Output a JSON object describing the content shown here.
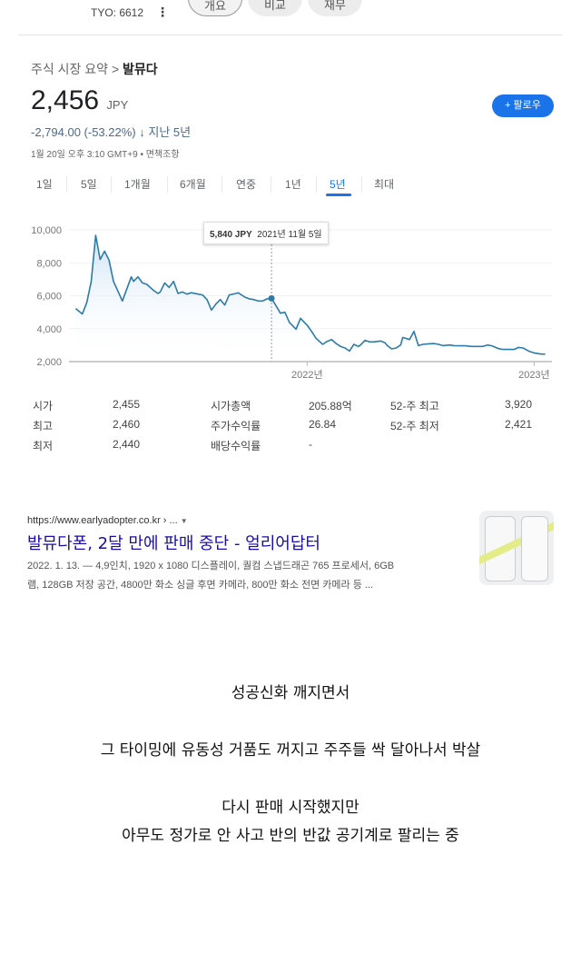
{
  "header": {
    "ticker": "TYO: 6612",
    "tabs": [
      "개요",
      "비교",
      "재무"
    ]
  },
  "summary": {
    "breadcrumb_root": "주식 시장 요약 >",
    "breadcrumb_current": "발뮤다",
    "price": "2,456",
    "currency": "JPY",
    "change": "-2,794.00 (-53.22%)",
    "change_arrow": "↓",
    "change_period": "지난 5년",
    "timestamp": "1월 20일 오후 3:10 GMT+9 • 면책조항",
    "follow_label": "+ 팔로우",
    "ranges": [
      "1일",
      "5일",
      "1개월",
      "6개월",
      "연중",
      "1년",
      "5년",
      "최대"
    ],
    "selected_range": "5년"
  },
  "tooltip": {
    "value": "5,840 JPY",
    "date": "2021년 11월 5일"
  },
  "stats": [
    {
      "label": "시가",
      "value": "2,455"
    },
    {
      "label": "최고",
      "value": "2,460"
    },
    {
      "label": "최저",
      "value": "2,440"
    },
    {
      "label": "시가총액",
      "value": "205.88억"
    },
    {
      "label": "주가수익률",
      "value": "26.84"
    },
    {
      "label": "배당수익률",
      "value": "-"
    },
    {
      "label": "52-주 최고",
      "value": "3,920"
    },
    {
      "label": "52-주 최저",
      "value": "2,421"
    }
  ],
  "result": {
    "url": "https://www.earlyadopter.co.kr › ...",
    "title": "발뮤다폰, 2달 만에 판매 중단 - 얼리어답터",
    "snippet1": "2022. 1. 13. — 4,9인치, 1920 x 1080 디스플레이, 퀄컴 스냅드래곤 765 프로세서, 6GB",
    "snippet2": "램, 128GB 저장 공간, 4800만 화소 싱글 후면 카메라, 800만 화소 전면 카메라 등 ..."
  },
  "caption": [
    "성공신화 깨지면서",
    "그 타이밍에 유동성 거품도 꺼지고 주주들 싹 달아나서 박살",
    "다시 판매 시작했지만",
    "아무도 정가로 안 사고 반의 반값 공기계로 팔리는 중"
  ],
  "colors": {
    "accent": "#1a73e8",
    "line": "#2c7bab",
    "link": "#1a0dab"
  },
  "chart_data": {
    "type": "line",
    "title": "",
    "xlabel": "",
    "ylabel": "JPY",
    "xlim": [
      2020.93,
      2023.1
    ],
    "ylim": [
      2000,
      10000
    ],
    "yticks": [
      {
        "v": 10000,
        "label": "10,000"
      },
      {
        "v": 8000,
        "label": "8,000"
      },
      {
        "v": 6000,
        "label": "6,000"
      },
      {
        "v": 4000,
        "label": "4,000"
      },
      {
        "v": 2000,
        "label": "2,000"
      }
    ],
    "xticks": [
      {
        "v": 2022,
        "label": "2022년"
      },
      {
        "v": 2023.02,
        "label": "2023년"
      }
    ],
    "highlight": {
      "x": 2021.84,
      "y": 5840
    },
    "x": [
      2020.96,
      2020.98,
      2020.99,
      2021.01,
      2021.03,
      2021.05,
      2021.07,
      2021.09,
      2021.11,
      2021.13,
      2021.17,
      2021.21,
      2021.22,
      2021.24,
      2021.26,
      2021.28,
      2021.31,
      2021.33,
      2021.34,
      2021.36,
      2021.38,
      2021.4,
      2021.42,
      2021.44,
      2021.46,
      2021.48,
      2021.51,
      2021.53,
      2021.55,
      2021.57,
      2021.59,
      2021.61,
      2021.63,
      2021.65,
      2021.68,
      2021.69,
      2021.72,
      2021.74,
      2021.76,
      2021.78,
      2021.8,
      2021.82,
      2021.84,
      2021.86,
      2021.88,
      2021.9,
      2021.92,
      2021.94,
      2021.95,
      2021.97,
      2022.0,
      2022.02,
      2022.04,
      2022.07,
      2022.09,
      2022.11,
      2022.13,
      2022.15,
      2022.17,
      2022.19,
      2022.21,
      2022.23,
      2022.24,
      2022.26,
      2022.28,
      2022.3,
      2022.33,
      2022.35,
      2022.36,
      2022.38,
      2022.4,
      2022.42,
      2022.43,
      2022.46,
      2022.48,
      2022.5,
      2022.52,
      2022.54,
      2022.57,
      2022.59,
      2022.61,
      2022.64,
      2022.66,
      2022.69,
      2022.71,
      2022.74,
      2022.76,
      2022.79,
      2022.81,
      2022.83,
      2022.86,
      2022.88,
      2022.91,
      2022.93,
      2022.95,
      2022.97,
      2023.0,
      2023.02,
      2023.05,
      2023.07
    ],
    "y": [
      5220,
      5000,
      4890,
      5590,
      6870,
      9670,
      8200,
      8710,
      8160,
      6870,
      5680,
      7150,
      6870,
      7150,
      6780,
      6690,
      6320,
      6140,
      6230,
      6780,
      6510,
      6870,
      6140,
      6230,
      6100,
      6180,
      6100,
      6050,
      5770,
      5130,
      5490,
      5770,
      5440,
      6050,
      6140,
      6180,
      5920,
      5810,
      5770,
      5680,
      5680,
      5810,
      5840,
      5400,
      4940,
      5000,
      4390,
      4110,
      3970,
      4630,
      4210,
      3840,
      3420,
      3050,
      3230,
      3340,
      3100,
      2920,
      2830,
      2640,
      3050,
      2920,
      3010,
      3290,
      3200,
      3200,
      3250,
      3140,
      2970,
      2770,
      2830,
      3010,
      3470,
      3340,
      3840,
      2970,
      3050,
      3070,
      3100,
      3050,
      2970,
      3010,
      2970,
      2960,
      2960,
      2920,
      2920,
      2920,
      3010,
      2960,
      2790,
      2740,
      2740,
      2740,
      2860,
      2830,
      2610,
      2530,
      2460,
      2456
    ]
  }
}
